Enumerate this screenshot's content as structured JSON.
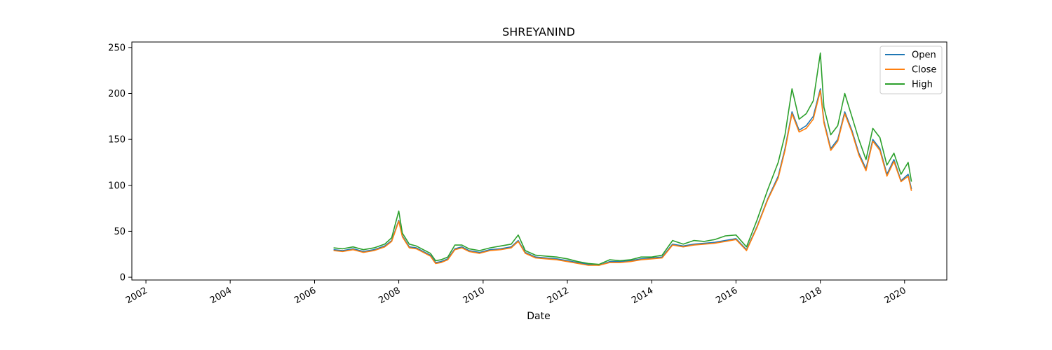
{
  "chart_data": {
    "type": "line",
    "title": "SHREYANIND",
    "xlabel": "Date",
    "ylabel": "",
    "x_ticks": [
      "2002",
      "2004",
      "2006",
      "2008",
      "2010",
      "2012",
      "2014",
      "2016",
      "2018",
      "2020"
    ],
    "y_ticks": [
      0,
      50,
      100,
      150,
      200,
      250
    ],
    "xlim": [
      "2001-09-01",
      "2021-01-01"
    ],
    "ylim": [
      -3,
      256
    ],
    "grid": false,
    "legend_position": "top-right",
    "x": [
      "2006-06-15",
      "2006-09-01",
      "2006-12-01",
      "2007-03-01",
      "2007-06-01",
      "2007-09-01",
      "2007-11-01",
      "2008-01-01",
      "2008-02-01",
      "2008-04-01",
      "2008-06-01",
      "2008-08-01",
      "2008-10-01",
      "2008-11-15",
      "2009-01-01",
      "2009-03-01",
      "2009-05-01",
      "2009-07-01",
      "2009-09-01",
      "2009-12-01",
      "2010-03-01",
      "2010-06-01",
      "2010-09-01",
      "2010-11-01",
      "2011-01-01",
      "2011-04-01",
      "2011-07-01",
      "2011-10-01",
      "2012-01-01",
      "2012-04-01",
      "2012-07-01",
      "2012-10-01",
      "2013-01-01",
      "2013-04-01",
      "2013-07-01",
      "2013-10-01",
      "2014-01-01",
      "2014-04-01",
      "2014-07-01",
      "2014-10-01",
      "2015-01-01",
      "2015-04-01",
      "2015-07-01",
      "2015-10-01",
      "2016-01-01",
      "2016-04-01",
      "2016-07-01",
      "2016-10-01",
      "2017-01-01",
      "2017-03-01",
      "2017-05-01",
      "2017-07-01",
      "2017-09-01",
      "2017-11-01",
      "2018-01-01",
      "2018-02-01",
      "2018-04-01",
      "2018-06-01",
      "2018-08-01",
      "2018-10-01",
      "2018-12-01",
      "2019-02-01",
      "2019-04-01",
      "2019-06-01",
      "2019-08-01",
      "2019-10-01",
      "2019-12-01",
      "2020-02-01",
      "2020-03-01"
    ],
    "series": [
      {
        "name": "Open",
        "color": "#1f77b4",
        "values": [
          30,
          29,
          31,
          28,
          30,
          34,
          40,
          62,
          45,
          33,
          32,
          28,
          24,
          16,
          17,
          20,
          31,
          33,
          29,
          27,
          30,
          31,
          33,
          40,
          27,
          22,
          21,
          20,
          18,
          16,
          14,
          13,
          17,
          17,
          18,
          20,
          21,
          22,
          36,
          34,
          36,
          37,
          38,
          40,
          42,
          30,
          55,
          85,
          110,
          140,
          180,
          160,
          165,
          175,
          205,
          170,
          140,
          150,
          180,
          160,
          135,
          118,
          150,
          140,
          112,
          128,
          105,
          112,
          96
        ]
      },
      {
        "name": "Close",
        "color": "#ff7f0e",
        "values": [
          29,
          28,
          30,
          27,
          29,
          33,
          39,
          61,
          44,
          32,
          31,
          27,
          23,
          15,
          16,
          19,
          30,
          32,
          28,
          26,
          29,
          30,
          32,
          39,
          26,
          21,
          20,
          19,
          17,
          15,
          13,
          13,
          16,
          16,
          17,
          19,
          20,
          21,
          35,
          33,
          35,
          36,
          37,
          39,
          41,
          29,
          54,
          84,
          108,
          138,
          178,
          158,
          162,
          172,
          203,
          168,
          138,
          148,
          178,
          158,
          133,
          116,
          148,
          138,
          110,
          126,
          104,
          110,
          94
        ]
      },
      {
        "name": "High",
        "color": "#2ca02c",
        "values": [
          32,
          31,
          33,
          30,
          32,
          36,
          43,
          72,
          48,
          36,
          34,
          30,
          26,
          18,
          19,
          22,
          35,
          35,
          31,
          29,
          32,
          34,
          36,
          46,
          29,
          24,
          23,
          22,
          20,
          17,
          15,
          14,
          19,
          18,
          19,
          22,
          22,
          24,
          40,
          36,
          40,
          39,
          41,
          45,
          46,
          33,
          62,
          95,
          125,
          155,
          205,
          172,
          178,
          192,
          244,
          185,
          155,
          165,
          200,
          175,
          150,
          128,
          162,
          152,
          122,
          135,
          112,
          125,
          104
        ]
      }
    ]
  }
}
